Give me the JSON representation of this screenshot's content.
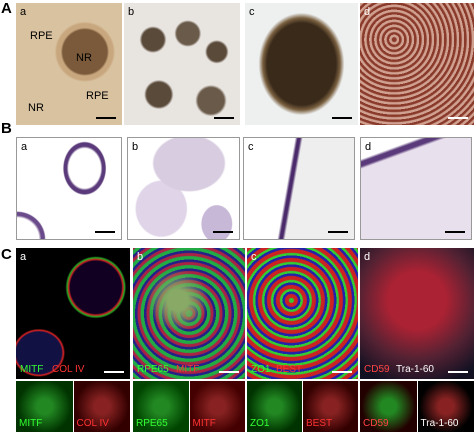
{
  "figure": {
    "A": {
      "label": "A",
      "panels": [
        {
          "label": "a",
          "annotations": [
            "RPE",
            "NR",
            "NR",
            "RPE"
          ]
        },
        {
          "label": "b"
        },
        {
          "label": "c"
        },
        {
          "label": "d"
        }
      ]
    },
    "B": {
      "label": "B",
      "panels": [
        {
          "label": "a"
        },
        {
          "label": "b"
        },
        {
          "label": "c"
        },
        {
          "label": "d"
        }
      ]
    },
    "C": {
      "label": "C",
      "panels": [
        {
          "label": "a",
          "stains": [
            "MITF",
            "COL IV"
          ],
          "channels": [
            "MITF",
            "COL IV"
          ]
        },
        {
          "label": "b",
          "stains": [
            "RPE65",
            "MITF"
          ],
          "channels": [
            "RPE65",
            "MITF"
          ]
        },
        {
          "label": "c",
          "stains": [
            "ZO1",
            "BEST"
          ],
          "channels": [
            "ZO1",
            "BEST"
          ]
        },
        {
          "label": "d",
          "stains": [
            "CD59",
            "Tra-1-60"
          ],
          "channels": [
            "CD59",
            "Tra-1-60"
          ]
        }
      ]
    }
  }
}
